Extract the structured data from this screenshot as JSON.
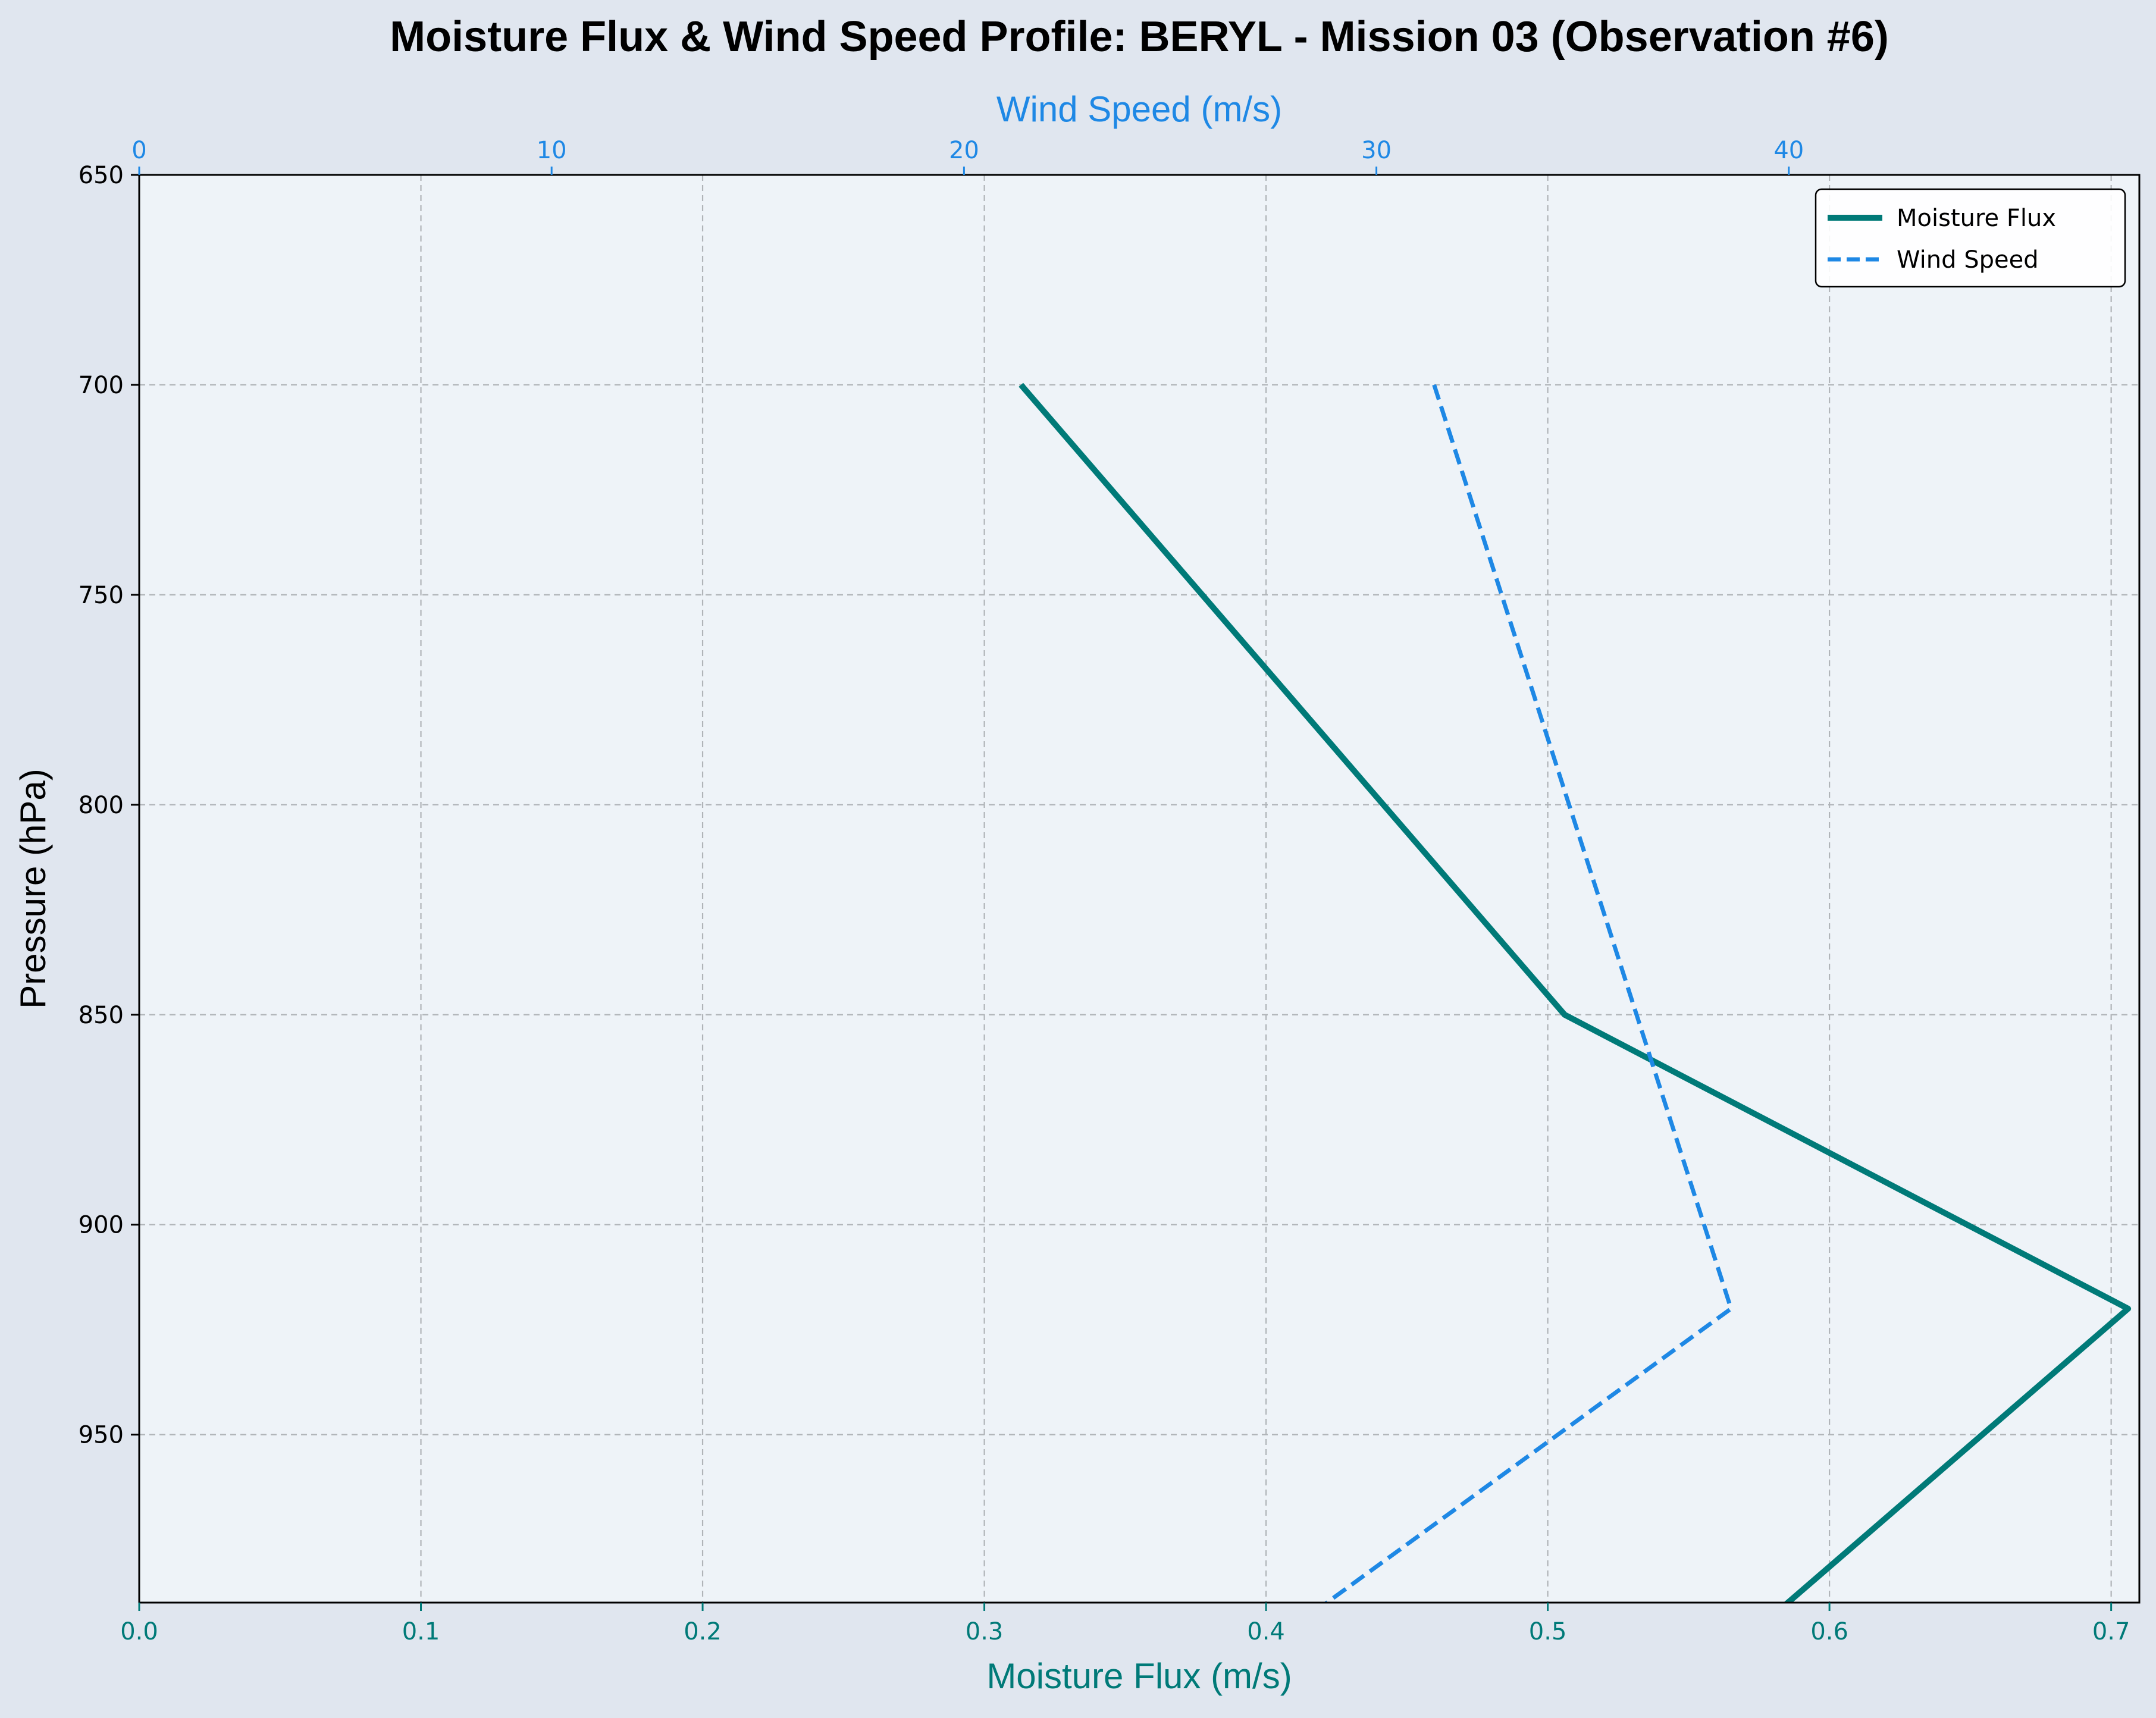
{
  "chart_data": {
    "type": "line",
    "title": "Moisture Flux & Wind Speed Profile: BERYL - Mission 03 (Observation #6)",
    "ylabel": "Pressure (hPa)",
    "xlabel": "Moisture Flux (m/s)",
    "x2label": "Wind Speed (m/s)",
    "ylim": [
      650,
      990
    ],
    "y_inverted": true,
    "xlim": [
      0,
      0.71
    ],
    "x2lim": [
      0,
      48.5
    ],
    "yticks": [
      "650",
      "700",
      "750",
      "800",
      "850",
      "900",
      "950"
    ],
    "ytick_values": [
      650,
      700,
      750,
      800,
      850,
      900,
      950
    ],
    "xticks": [
      "0.0",
      "0.1",
      "0.2",
      "0.3",
      "0.4",
      "0.5",
      "0.6",
      "0.7"
    ],
    "xtick_values": [
      0,
      0.1,
      0.2,
      0.3,
      0.4,
      0.5,
      0.6,
      0.7
    ],
    "x2ticks": [
      "0",
      "10",
      "20",
      "30",
      "40"
    ],
    "x2tick_values": [
      0,
      10,
      20,
      30,
      40
    ],
    "grid": true,
    "legend_position": "top-right",
    "series": [
      {
        "name": "Moisture Flux",
        "axis": "bottom",
        "color": "#007a78",
        "style": "solid",
        "points": [
          [
            0.313,
            700
          ],
          [
            0.506,
            850
          ],
          [
            0.706,
            920
          ],
          [
            0.568,
            1000
          ]
        ]
      },
      {
        "name": "Wind Speed",
        "axis": "top",
        "color": "#1e88e5",
        "style": "dashed",
        "points": [
          [
            31.4,
            700
          ],
          [
            38.6,
            920
          ],
          [
            27.4,
            1000
          ]
        ]
      }
    ]
  },
  "colors": {
    "figure_bg": "#e0e6ef",
    "axes_bg": "#eef3f8",
    "bottom_axis": "#007a78",
    "top_axis": "#1e88e5",
    "grid": "#b0b4b8"
  }
}
